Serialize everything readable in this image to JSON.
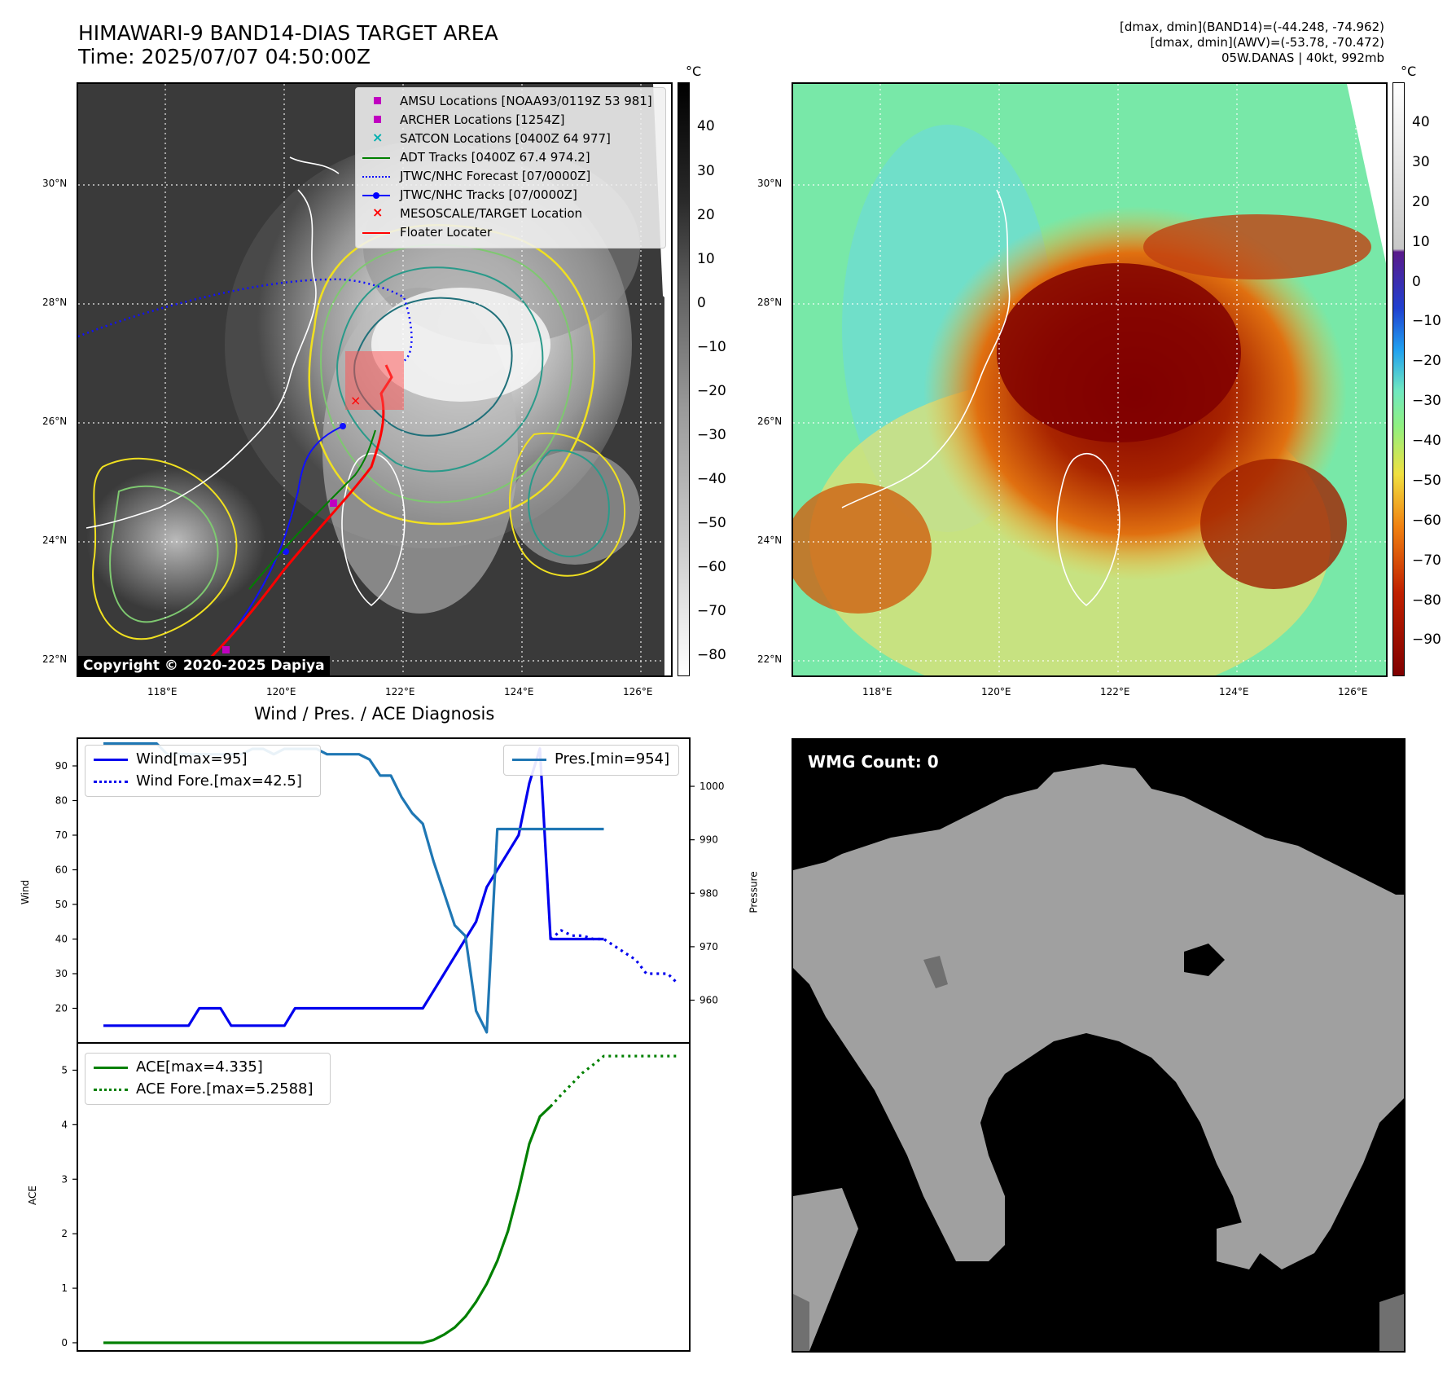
{
  "header": {
    "title_line1": "HIMAWARI-9 BAND14-DIAS TARGET AREA",
    "title_line2": "Time: 2025/07/07 04:50:00Z",
    "meta_line1": "[dmax, dmin](BAND14)=(-44.248, -74.962)",
    "meta_line2": "[dmax, dmin](AWV)=(-53.78, -70.472)",
    "meta_line3": "05W.DANAS | 40kt, 992mb"
  },
  "map": {
    "lat_labels": [
      "30°N",
      "28°N",
      "26°N",
      "24°N",
      "22°N"
    ],
    "lon_labels": [
      "118°E",
      "120°E",
      "122°E",
      "124°E",
      "126°E"
    ],
    "copyright": "Copyright © 2020-2025 Dapiya"
  },
  "colorbar_gray": {
    "unit": "°C",
    "ticks": [
      "40",
      "30",
      "20",
      "10",
      "0",
      "−10",
      "−20",
      "−30",
      "−40",
      "−50",
      "−60",
      "−70",
      "−80"
    ]
  },
  "colorbar_color": {
    "unit": "°C",
    "ticks": [
      "40",
      "30",
      "20",
      "10",
      "0",
      "−10",
      "−20",
      "−30",
      "−40",
      "−50",
      "−60",
      "−70",
      "−80",
      "−90"
    ]
  },
  "legend": {
    "items": [
      {
        "label": "AMSU Locations [NOAA93/0119Z 53 981]",
        "color": "#c000c0",
        "marker": "square"
      },
      {
        "label": "ARCHER Locations [1254Z]",
        "color": "#c000c0",
        "marker": "square"
      },
      {
        "label": "SATCON Locations [0400Z 64 977]",
        "color": "#00b0b0",
        "marker": "x"
      },
      {
        "label": "ADT Tracks [0400Z 67.4 974.2]",
        "color": "#008000",
        "marker": "line"
      },
      {
        "label": "JTWC/NHC Forecast [07/0000Z]",
        "color": "#0000ff",
        "marker": "dotted"
      },
      {
        "label": "JTWC/NHC Tracks [07/0000Z]",
        "color": "#0000ff",
        "marker": "line-dot"
      },
      {
        "label": "MESOSCALE/TARGET Location",
        "color": "#ff0000",
        "marker": "x"
      },
      {
        "label": "Floater Locater",
        "color": "#ff0000",
        "marker": "line"
      }
    ]
  },
  "diagnosis": {
    "title": "Wind / Pres. / ACE Diagnosis",
    "wind_ylabel": "Wind",
    "pres_ylabel": "Pressure",
    "ace_ylabel": "ACE",
    "legend_wind": "Wind[max=95]",
    "legend_wind_fore": "Wind Fore.[max=42.5]",
    "legend_pres": "Pres.[min=954]",
    "legend_ace": "ACE[max=4.335]",
    "legend_ace_fore": "ACE Fore.[max=5.2588]"
  },
  "wmg": {
    "label": "WMG Count: 0"
  },
  "chart_data": [
    {
      "type": "line",
      "title": "Wind / Pres. / ACE Diagnosis",
      "ylabel": "Wind",
      "ylim": [
        10,
        98
      ],
      "yticks": [
        20,
        30,
        40,
        50,
        60,
        70,
        80,
        90
      ],
      "series": [
        {
          "name": "Wind[max=95]",
          "color": "#0000ee",
          "style": "solid",
          "x": [
            0,
            1,
            2,
            3,
            4,
            5,
            6,
            7,
            8,
            9,
            10,
            11,
            12,
            13,
            14,
            15,
            16,
            17,
            18,
            19,
            20,
            21,
            22,
            23,
            24,
            25,
            26,
            27,
            28,
            29,
            30,
            31,
            32,
            33,
            34,
            35,
            36,
            37,
            38,
            39,
            40,
            41,
            42,
            43,
            44,
            45,
            46,
            47
          ],
          "values": [
            15,
            15,
            15,
            15,
            15,
            15,
            15,
            15,
            15,
            20,
            20,
            20,
            15,
            15,
            15,
            15,
            15,
            15,
            20,
            20,
            20,
            20,
            20,
            20,
            20,
            20,
            20,
            20,
            20,
            20,
            20,
            25,
            30,
            35,
            40,
            45,
            55,
            60,
            65,
            70,
            85,
            95,
            40,
            40,
            40,
            40,
            40,
            40
          ]
        },
        {
          "name": "Wind Fore.[max=42.5]",
          "color": "#0000ee",
          "style": "dotted",
          "x": [
            42,
            43,
            44,
            45,
            46,
            47,
            48,
            49,
            50,
            51,
            52,
            53,
            54
          ],
          "values": [
            40,
            42.5,
            41,
            41,
            40,
            40,
            38,
            36,
            34,
            30,
            30,
            30,
            27
          ]
        }
      ]
    },
    {
      "type": "line",
      "ylabel": "Pressure",
      "ylim": [
        952,
        1009
      ],
      "yticks": [
        960,
        970,
        980,
        990,
        1000
      ],
      "series": [
        {
          "name": "Pres.[min=954]",
          "color": "#1f77b4",
          "style": "solid",
          "x": [
            0,
            1,
            2,
            3,
            4,
            5,
            6,
            7,
            8,
            9,
            10,
            11,
            12,
            13,
            14,
            15,
            16,
            17,
            18,
            19,
            20,
            21,
            22,
            23,
            24,
            25,
            26,
            27,
            28,
            29,
            30,
            31,
            32,
            33,
            34,
            35,
            36,
            37,
            38,
            39,
            40,
            41,
            42,
            43,
            44,
            45,
            46,
            47
          ],
          "values": [
            1008,
            1008,
            1008,
            1008,
            1008,
            1008,
            1006,
            1006,
            1006,
            1006,
            1006,
            1006,
            1006,
            1006,
            1007,
            1007,
            1006,
            1007,
            1007,
            1007,
            1007,
            1006,
            1006,
            1006,
            1006,
            1005,
            1002,
            1002,
            998,
            995,
            993,
            986,
            980,
            974,
            972,
            958,
            954,
            992,
            992,
            992,
            992,
            992,
            992,
            992,
            992,
            992,
            992,
            992
          ]
        }
      ]
    },
    {
      "type": "line",
      "ylabel": "ACE",
      "ylim": [
        -0.15,
        5.5
      ],
      "yticks": [
        0,
        1,
        2,
        3,
        4,
        5
      ],
      "series": [
        {
          "name": "ACE[max=4.335]",
          "color": "#008000",
          "style": "solid",
          "x": [
            0,
            4,
            8,
            12,
            16,
            20,
            24,
            28,
            30,
            31,
            32,
            33,
            34,
            35,
            36,
            37,
            38,
            39,
            40,
            41,
            42
          ],
          "values": [
            0,
            0,
            0,
            0,
            0,
            0,
            0,
            0,
            0,
            0.05,
            0.15,
            0.28,
            0.48,
            0.75,
            1.08,
            1.5,
            2.05,
            2.8,
            3.65,
            4.15,
            4.335
          ]
        },
        {
          "name": "ACE Fore.[max=5.2588]",
          "color": "#008000",
          "style": "dotted",
          "x": [
            42,
            43,
            44,
            45,
            46,
            47,
            48,
            50,
            52,
            54
          ],
          "values": [
            4.335,
            4.55,
            4.75,
            4.95,
            5.1,
            5.2588,
            5.2588,
            5.2588,
            5.2588,
            5.2588
          ]
        }
      ]
    }
  ]
}
